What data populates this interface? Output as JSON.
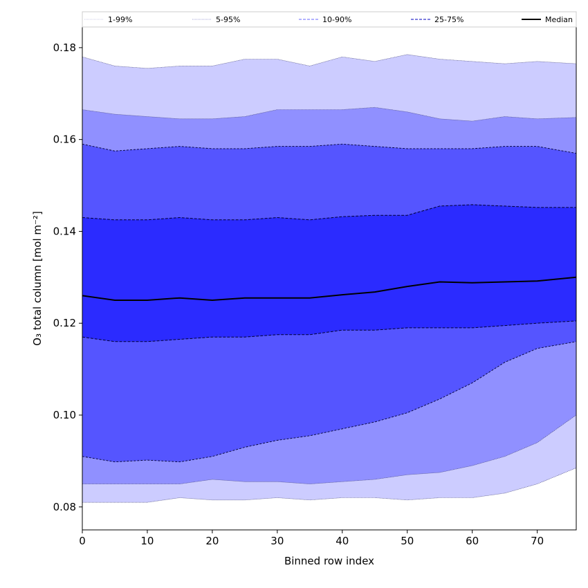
{
  "chart_data": {
    "type": "area",
    "xlabel": "Binned row index",
    "ylabel": "O₃ total column [mol m⁻²]",
    "xlim": [
      0,
      76
    ],
    "ylim": [
      0.075,
      0.1845
    ],
    "xticks": [
      0,
      10,
      20,
      30,
      40,
      50,
      60,
      70
    ],
    "yticks": [
      0.08,
      0.1,
      0.12,
      0.14,
      0.16,
      0.18
    ],
    "ytick_labels": [
      "0.08",
      "0.10",
      "0.12",
      "0.14",
      "0.16",
      "0.18"
    ],
    "legend_position": "top",
    "grid": false,
    "legend": [
      {
        "label": "1-99%",
        "band": "p1_99"
      },
      {
        "label": "5-95%",
        "band": "p5_95"
      },
      {
        "label": "10-90%",
        "band": "p10_90"
      },
      {
        "label": "25-75%",
        "band": "p25_75"
      },
      {
        "label": "Median",
        "band": "median"
      }
    ],
    "x": [
      0,
      5,
      10,
      15,
      20,
      25,
      30,
      35,
      40,
      45,
      50,
      55,
      60,
      65,
      70,
      76
    ],
    "bands": [
      {
        "name": "1-99%",
        "color": "#ccccff",
        "lower": [
          0.081,
          0.081,
          0.081,
          0.082,
          0.0815,
          0.0815,
          0.082,
          0.0815,
          0.082,
          0.082,
          0.0815,
          0.082,
          0.082,
          0.083,
          0.085,
          0.0885
        ],
        "upper": [
          0.178,
          0.176,
          0.1755,
          0.176,
          0.176,
          0.1775,
          0.1775,
          0.176,
          0.178,
          0.177,
          0.1785,
          0.1775,
          0.177,
          0.1765,
          0.177,
          0.1765
        ]
      },
      {
        "name": "5-95%",
        "color": "#9090ff",
        "lower": [
          0.085,
          0.085,
          0.085,
          0.085,
          0.086,
          0.0855,
          0.0855,
          0.085,
          0.0855,
          0.086,
          0.087,
          0.0875,
          0.089,
          0.091,
          0.094,
          0.1
        ],
        "upper": [
          0.1665,
          0.1655,
          0.165,
          0.1645,
          0.1645,
          0.165,
          0.1665,
          0.1665,
          0.1665,
          0.167,
          0.166,
          0.1645,
          0.164,
          0.165,
          0.1645,
          0.1648
        ]
      },
      {
        "name": "10-90%",
        "color": "#5555ff",
        "lower": [
          0.091,
          0.0898,
          0.0902,
          0.0898,
          0.091,
          0.093,
          0.0945,
          0.0955,
          0.097,
          0.0985,
          0.1005,
          0.1035,
          0.107,
          0.1115,
          0.1145,
          0.116
        ],
        "upper": [
          0.159,
          0.1575,
          0.158,
          0.1585,
          0.158,
          0.158,
          0.1585,
          0.1585,
          0.159,
          0.1585,
          0.158,
          0.158,
          0.158,
          0.1585,
          0.1585,
          0.157
        ]
      },
      {
        "name": "25-75%",
        "color": "#2b2bff",
        "lower": [
          0.117,
          0.116,
          0.116,
          0.1165,
          0.117,
          0.117,
          0.1175,
          0.1175,
          0.1185,
          0.1185,
          0.119,
          0.119,
          0.119,
          0.1195,
          0.12,
          0.1205
        ],
        "upper": [
          0.143,
          0.1425,
          0.1425,
          0.143,
          0.1425,
          0.1425,
          0.143,
          0.1425,
          0.1432,
          0.1435,
          0.1435,
          0.1455,
          0.1458,
          0.1455,
          0.1452,
          0.1452
        ]
      }
    ],
    "median": [
      0.126,
      0.125,
      0.125,
      0.1255,
      0.125,
      0.1255,
      0.1255,
      0.1255,
      0.1262,
      0.1268,
      0.128,
      0.129,
      0.1288,
      0.129,
      0.1292,
      0.13
    ]
  }
}
